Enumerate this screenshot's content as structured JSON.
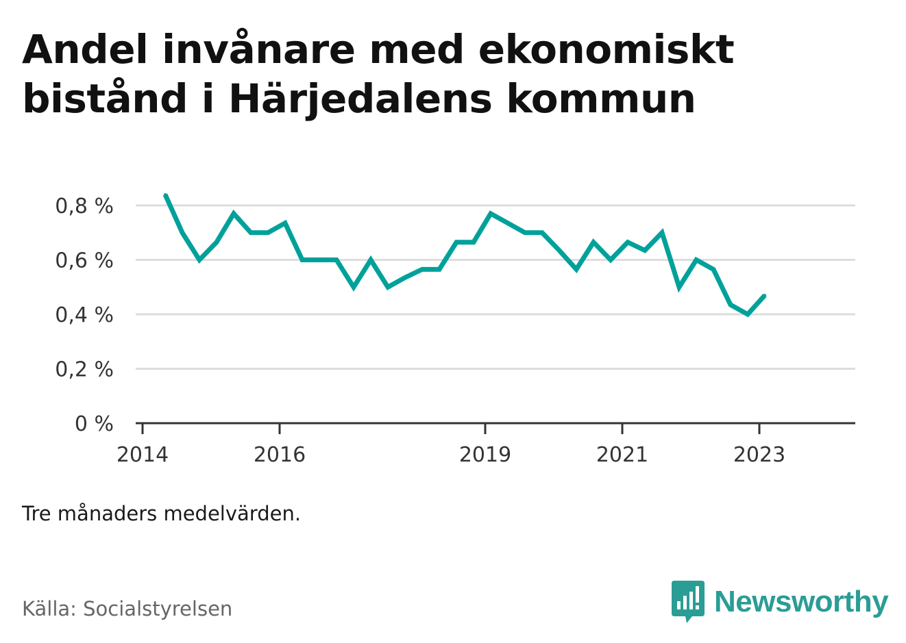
{
  "title": "Andel invånare med ekonomiskt bistånd i Härjedalens kommun",
  "note": "Tre månaders medelvärden.",
  "source": "Källa: Socialstyrelsen",
  "brand": {
    "name": "Newsworthy",
    "icon": "bar-chart-badge-icon",
    "color": "#2a9d95"
  },
  "chart_data": {
    "type": "line",
    "title": "Andel invånare med ekonomiskt bistånd i Härjedalens kommun",
    "xlabel": "",
    "ylabel": "",
    "line_color": "#00a19a",
    "x_ticks": [
      {
        "label": "2014",
        "value": 2014.0
      },
      {
        "label": "2016",
        "value": 2016.0
      },
      {
        "label": "2019",
        "value": 2019.0
      },
      {
        "label": "2021",
        "value": 2021.0
      },
      {
        "label": "2023",
        "value": 2023.0
      }
    ],
    "y_ticks": [
      {
        "label": "0 %",
        "value": 0
      },
      {
        "label": "0,2 %",
        "value": 0.2
      },
      {
        "label": "0,4 %",
        "value": 0.4
      },
      {
        "label": "0,6 %",
        "value": 0.6
      },
      {
        "label": "0,8 %",
        "value": 0.8
      }
    ],
    "xlim": [
      2013.9,
      2024.4
    ],
    "ylim": [
      0,
      0.8
    ],
    "grid": true,
    "series": [
      {
        "x": [
          2014.33,
          2014.58,
          2014.83,
          2015.08,
          2015.33,
          2015.58,
          2015.83,
          2016.08,
          2016.33,
          2016.58,
          2016.83,
          2017.08,
          2017.33,
          2017.58,
          2017.83,
          2018.08,
          2018.33,
          2018.58,
          2018.83,
          2019.08,
          2019.33,
          2019.58,
          2019.83,
          2020.08,
          2020.33,
          2020.58,
          2020.83,
          2021.08,
          2021.33,
          2021.58,
          2021.83,
          2022.08,
          2022.33,
          2022.58,
          2022.83,
          2023.08
        ],
        "values": [
          0.84,
          0.7,
          0.6,
          0.665,
          0.77,
          0.7,
          0.7,
          0.735,
          0.6,
          0.6,
          0.6,
          0.5,
          0.6,
          0.5,
          0.535,
          0.565,
          0.565,
          0.665,
          0.665,
          0.77,
          0.735,
          0.7,
          0.7,
          0.635,
          0.565,
          0.665,
          0.6,
          0.665,
          0.635,
          0.7,
          0.5,
          0.6,
          0.565,
          0.435,
          0.4,
          0.47
        ]
      }
    ]
  }
}
